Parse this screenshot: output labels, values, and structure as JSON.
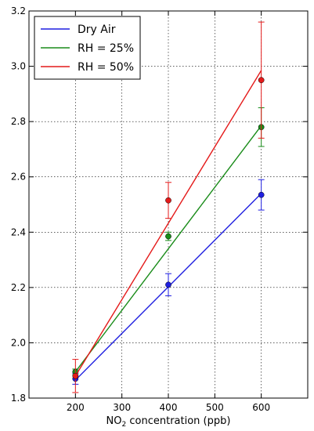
{
  "chart_data": {
    "type": "line",
    "xlabel_main": "NO",
    "xlabel_sub": "2",
    "xlabel_rest": " concentration (ppb)",
    "ylabel": "",
    "xlim": [
      100,
      700
    ],
    "ylim": [
      1.8,
      3.2
    ],
    "xticks": [
      200,
      300,
      400,
      500,
      600
    ],
    "yticks": [
      1.8,
      2.0,
      2.2,
      2.4,
      2.6,
      2.8,
      3.0,
      3.2
    ],
    "ytick_labels": [
      "1.8",
      "2.0",
      "2.2",
      "2.4",
      "2.6",
      "2.8",
      "3.0",
      "3.2"
    ],
    "grid": true,
    "legend_position": "top-left",
    "series": [
      {
        "name": "Dry Air",
        "color": "#1f1fe0",
        "points": [
          {
            "x": 200,
            "y": 1.87,
            "err": 0.02
          },
          {
            "x": 400,
            "y": 2.21,
            "err": 0.04
          },
          {
            "x": 600,
            "y": 2.535,
            "err": 0.055
          }
        ],
        "fit": [
          [
            200,
            1.865
          ],
          [
            600,
            2.54
          ]
        ]
      },
      {
        "name": "RH = 25%",
        "color": "#1a8c1a",
        "points": [
          {
            "x": 200,
            "y": 1.895,
            "err": 0.01
          },
          {
            "x": 400,
            "y": 2.385,
            "err": 0.015
          },
          {
            "x": 600,
            "y": 2.78,
            "err": 0.07
          }
        ],
        "fit": [
          [
            200,
            1.895
          ],
          [
            600,
            2.785
          ]
        ]
      },
      {
        "name": "RH = 50%",
        "color": "#e41a1a",
        "points": [
          {
            "x": 200,
            "y": 1.88,
            "err": 0.06
          },
          {
            "x": 400,
            "y": 2.515,
            "err": 0.065
          },
          {
            "x": 600,
            "y": 2.95,
            "err": 0.21
          }
        ],
        "fit": [
          [
            200,
            1.88
          ],
          [
            600,
            2.985
          ]
        ]
      }
    ]
  }
}
